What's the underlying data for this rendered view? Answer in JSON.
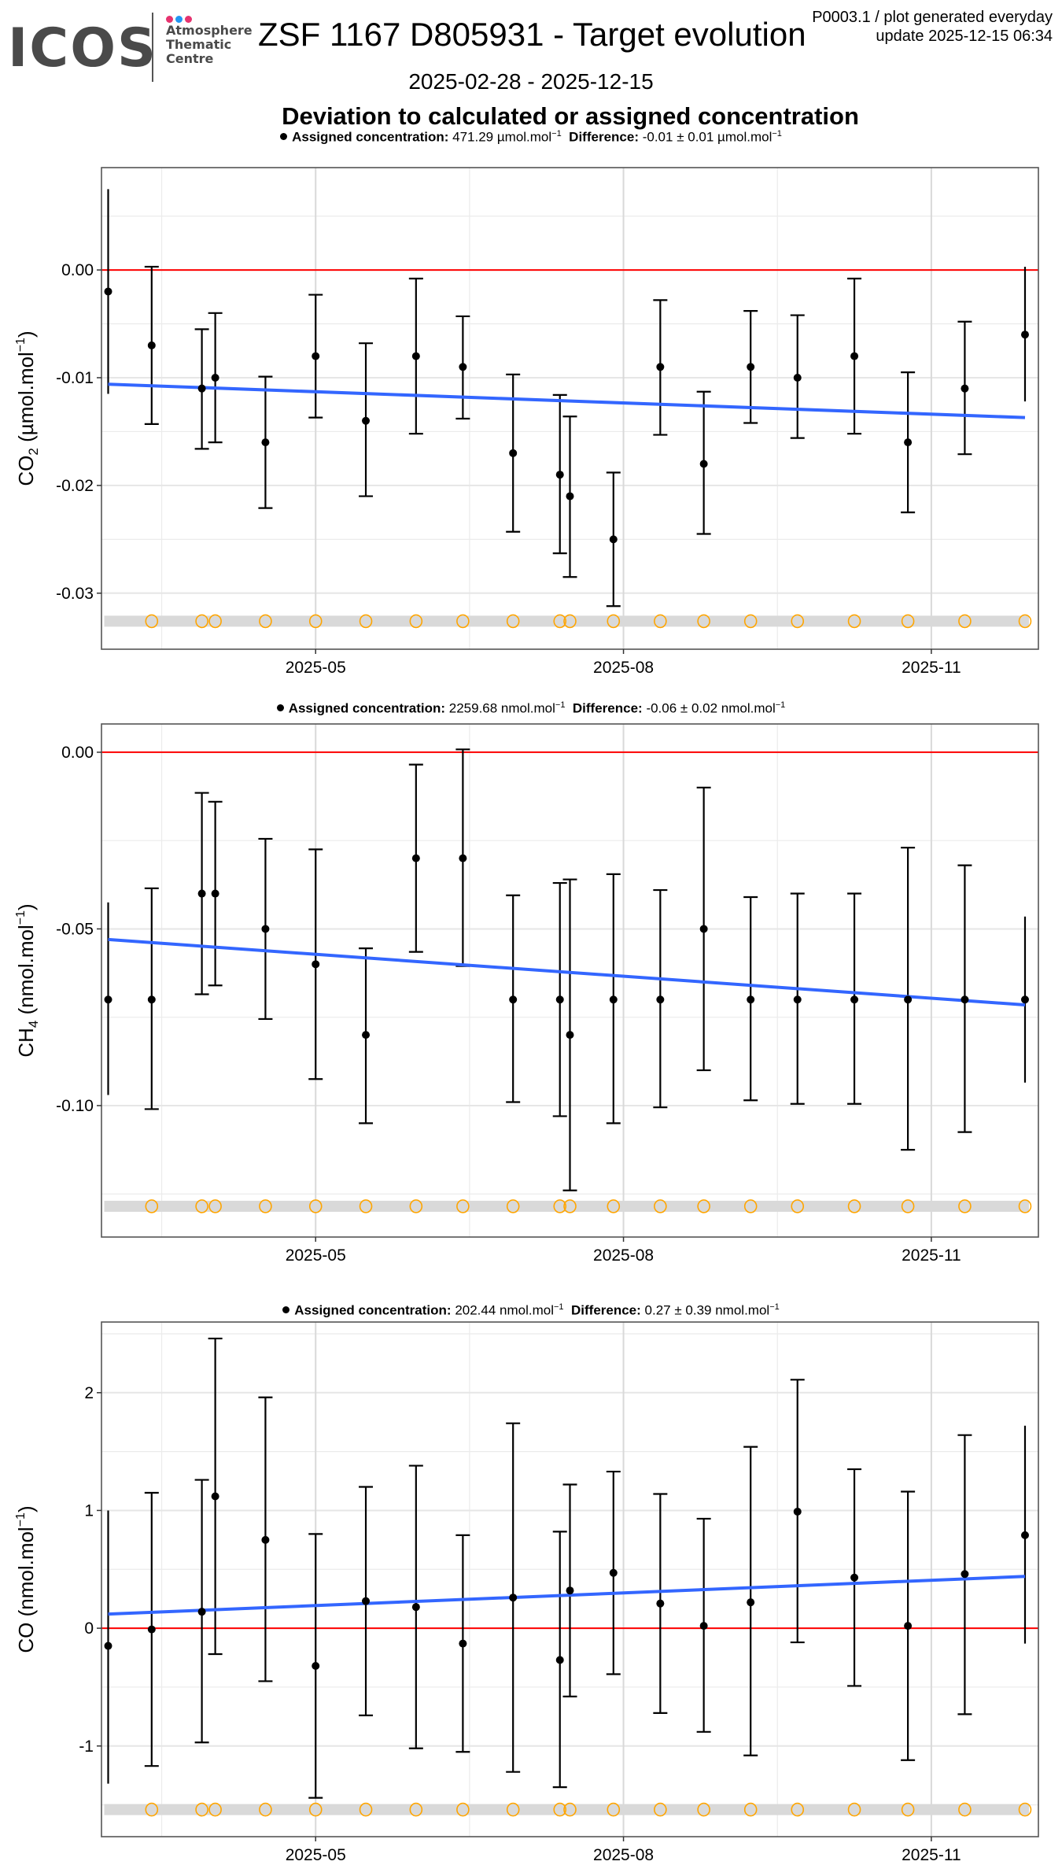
{
  "header": {
    "logo_text": "ICOS",
    "logo_sub": [
      "Atmosphere",
      "Thematic",
      "Centre"
    ],
    "logo_dot_colors": [
      "#e6336f",
      "#2196f3",
      "#e6336f"
    ],
    "title": "ZSF 1167 D805931 - Target evolution",
    "meta_line1": "P0003.1 / plot generated everyday",
    "meta_line2": "update  2025-12-15 06:34",
    "date_range": "2025-02-28 - 2025-12-15",
    "subtitle": "Deviation to calculated or assigned concentration"
  },
  "colors": {
    "reference_line": "#ff0000",
    "trend_line": "#3366ff",
    "points": "#000000",
    "flag_circles": "#ffa500",
    "flag_band": "#d9d9d9",
    "grid_major": "#d9d9d9",
    "grid_minor": "#ebebeb"
  },
  "chart_data": [
    {
      "type": "scatter",
      "gas": "CO2",
      "ylabel_main": "CO",
      "ylabel_sub": "2",
      "ylabel_unit": " (µmol.mol",
      "legend": {
        "label1": "Assigned concentration:",
        "value1": "471.29 µmol.mol",
        "label2": "Difference:",
        "value2": "-0.01 ± 0.01 µmol.mol"
      },
      "ylim": [
        -0.0352,
        0.0095
      ],
      "yticks": [
        0.0,
        -0.01,
        -0.02,
        -0.03
      ],
      "ytick_labels": [
        "0.00",
        "-0.01",
        "-0.02",
        "-0.03"
      ],
      "yminor": [
        0.005,
        -0.005,
        -0.015,
        -0.025
      ],
      "reference": 0.0,
      "flag_level": -0.0326,
      "trend": [
        -0.0106,
        -0.0137
      ],
      "x": [
        "2025-02-28",
        "2025-03-13",
        "2025-03-28",
        "2025-04-01",
        "2025-04-16",
        "2025-05-01",
        "2025-05-16",
        "2025-05-31",
        "2025-06-14",
        "2025-06-29",
        "2025-07-13",
        "2025-07-16",
        "2025-07-29",
        "2025-08-12",
        "2025-08-25",
        "2025-09-08",
        "2025-09-22",
        "2025-10-09",
        "2025-10-25",
        "2025-11-11",
        "2025-11-29"
      ],
      "y": [
        -0.002,
        -0.007,
        -0.011,
        -0.01,
        -0.016,
        -0.008,
        -0.014,
        -0.008,
        -0.009,
        -0.017,
        -0.019,
        -0.021,
        -0.025,
        -0.009,
        -0.018,
        -0.009,
        -0.01,
        -0.008,
        -0.016,
        -0.011,
        -0.006
      ],
      "ymax": [
        0.0075,
        0.0003,
        -0.0055,
        -0.004,
        -0.0099,
        -0.0023,
        -0.0068,
        -0.0008,
        -0.0043,
        -0.0097,
        -0.0116,
        -0.0136,
        -0.0188,
        -0.0028,
        -0.0113,
        -0.0038,
        -0.0042,
        -0.0008,
        -0.0095,
        -0.0048,
        0.0003
      ],
      "ymin": [
        -0.0115,
        -0.0143,
        -0.0166,
        -0.016,
        -0.0221,
        -0.0137,
        -0.021,
        -0.0152,
        -0.0138,
        -0.0243,
        -0.0263,
        -0.0285,
        -0.0312,
        -0.0153,
        -0.0245,
        -0.0142,
        -0.0156,
        -0.0152,
        -0.0225,
        -0.0171,
        -0.0122
      ]
    },
    {
      "type": "scatter",
      "gas": "CH4",
      "ylabel_main": "CH",
      "ylabel_sub": "4",
      "ylabel_unit": " (nmol.mol",
      "legend": {
        "label1": "Assigned concentration:",
        "value1": "2259.68 nmol.mol",
        "label2": "Difference:",
        "value2": "-0.06 ± 0.02 nmol.mol"
      },
      "ylim": [
        -0.1372,
        0.008
      ],
      "yticks": [
        0.0,
        -0.05,
        -0.1
      ],
      "ytick_labels": [
        "0.00",
        "-0.05",
        "-0.10"
      ],
      "yminor": [
        -0.025,
        -0.075,
        -0.125
      ],
      "reference": 0.0,
      "flag_level": -0.1285,
      "trend": [
        -0.053,
        -0.0715
      ],
      "x": [
        "2025-02-28",
        "2025-03-13",
        "2025-03-28",
        "2025-04-01",
        "2025-04-16",
        "2025-05-01",
        "2025-05-16",
        "2025-05-31",
        "2025-06-14",
        "2025-06-29",
        "2025-07-13",
        "2025-07-16",
        "2025-07-29",
        "2025-08-12",
        "2025-08-25",
        "2025-09-08",
        "2025-09-22",
        "2025-10-09",
        "2025-10-25",
        "2025-11-11",
        "2025-11-29"
      ],
      "y": [
        -0.07,
        -0.07,
        -0.04,
        -0.04,
        -0.05,
        -0.06,
        -0.08,
        -0.03,
        -0.03,
        -0.07,
        -0.07,
        -0.08,
        -0.07,
        -0.07,
        -0.05,
        -0.07,
        -0.07,
        -0.07,
        -0.07,
        -0.07,
        -0.07
      ],
      "ymax": [
        -0.0425,
        -0.0385,
        -0.0115,
        -0.014,
        -0.0245,
        -0.0275,
        -0.0555,
        -0.0035,
        0.0008,
        -0.0405,
        -0.037,
        -0.036,
        -0.0345,
        -0.039,
        -0.01,
        -0.041,
        -0.04,
        -0.04,
        -0.027,
        -0.032,
        -0.0465
      ],
      "ymin": [
        -0.097,
        -0.101,
        -0.0685,
        -0.066,
        -0.0755,
        -0.0925,
        -0.105,
        -0.0565,
        -0.0605,
        -0.099,
        -0.103,
        -0.124,
        -0.105,
        -0.1005,
        -0.09,
        -0.0985,
        -0.0995,
        -0.0995,
        -0.1125,
        -0.1075,
        -0.0935
      ]
    },
    {
      "type": "scatter",
      "gas": "CO",
      "ylabel_main": "CO",
      "ylabel_sub": "",
      "ylabel_unit": " (nmol.mol",
      "legend": {
        "label1": "Assigned concentration:",
        "value1": "202.44 nmol.mol",
        "label2": "Difference:",
        "value2": "0.27 ± 0.39 nmol.mol"
      },
      "ylim": [
        -1.77,
        2.6
      ],
      "yticks": [
        2,
        1,
        0,
        -1
      ],
      "ytick_labels": [
        "2",
        "1",
        "0",
        "-1"
      ],
      "yminor": [
        2.5,
        1.5,
        0.5,
        -0.5,
        -1.5
      ],
      "reference": 0.0,
      "flag_level": -1.54,
      "trend": [
        0.12,
        0.44
      ],
      "x": [
        "2025-02-28",
        "2025-03-13",
        "2025-03-28",
        "2025-04-01",
        "2025-04-16",
        "2025-05-01",
        "2025-05-16",
        "2025-05-31",
        "2025-06-14",
        "2025-06-29",
        "2025-07-13",
        "2025-07-16",
        "2025-07-29",
        "2025-08-12",
        "2025-08-25",
        "2025-09-08",
        "2025-09-22",
        "2025-10-09",
        "2025-10-25",
        "2025-11-11",
        "2025-11-29"
      ],
      "y": [
        -0.15,
        -0.01,
        0.14,
        1.12,
        0.75,
        -0.32,
        0.23,
        0.18,
        -0.13,
        0.26,
        -0.27,
        0.32,
        0.47,
        0.21,
        0.02,
        0.22,
        0.99,
        0.43,
        0.02,
        0.46,
        0.79
      ],
      "ymax": [
        1.0,
        1.15,
        1.26,
        2.46,
        1.96,
        0.8,
        1.2,
        1.38,
        0.79,
        1.74,
        0.82,
        1.22,
        1.33,
        1.14,
        0.93,
        1.54,
        2.11,
        1.35,
        1.16,
        1.64,
        1.72
      ],
      "ymin": [
        -1.32,
        -1.17,
        -0.97,
        -0.22,
        -0.45,
        -1.44,
        -0.74,
        -1.02,
        -1.05,
        -1.22,
        -1.35,
        -0.58,
        -0.39,
        -0.72,
        -0.88,
        -1.08,
        -0.12,
        -0.49,
        -1.12,
        -0.73,
        -0.13
      ]
    }
  ],
  "x_axis": {
    "ticks": [
      "2025-05-01",
      "2025-08-01",
      "2025-11-01"
    ],
    "tick_labels": [
      "2025-05",
      "2025-08",
      "2025-11"
    ],
    "minor": [
      "2025-03-16",
      "2025-06-16",
      "2025-09-16",
      "2025-12-16"
    ],
    "range": [
      "2025-02-26",
      "2025-12-03"
    ]
  }
}
